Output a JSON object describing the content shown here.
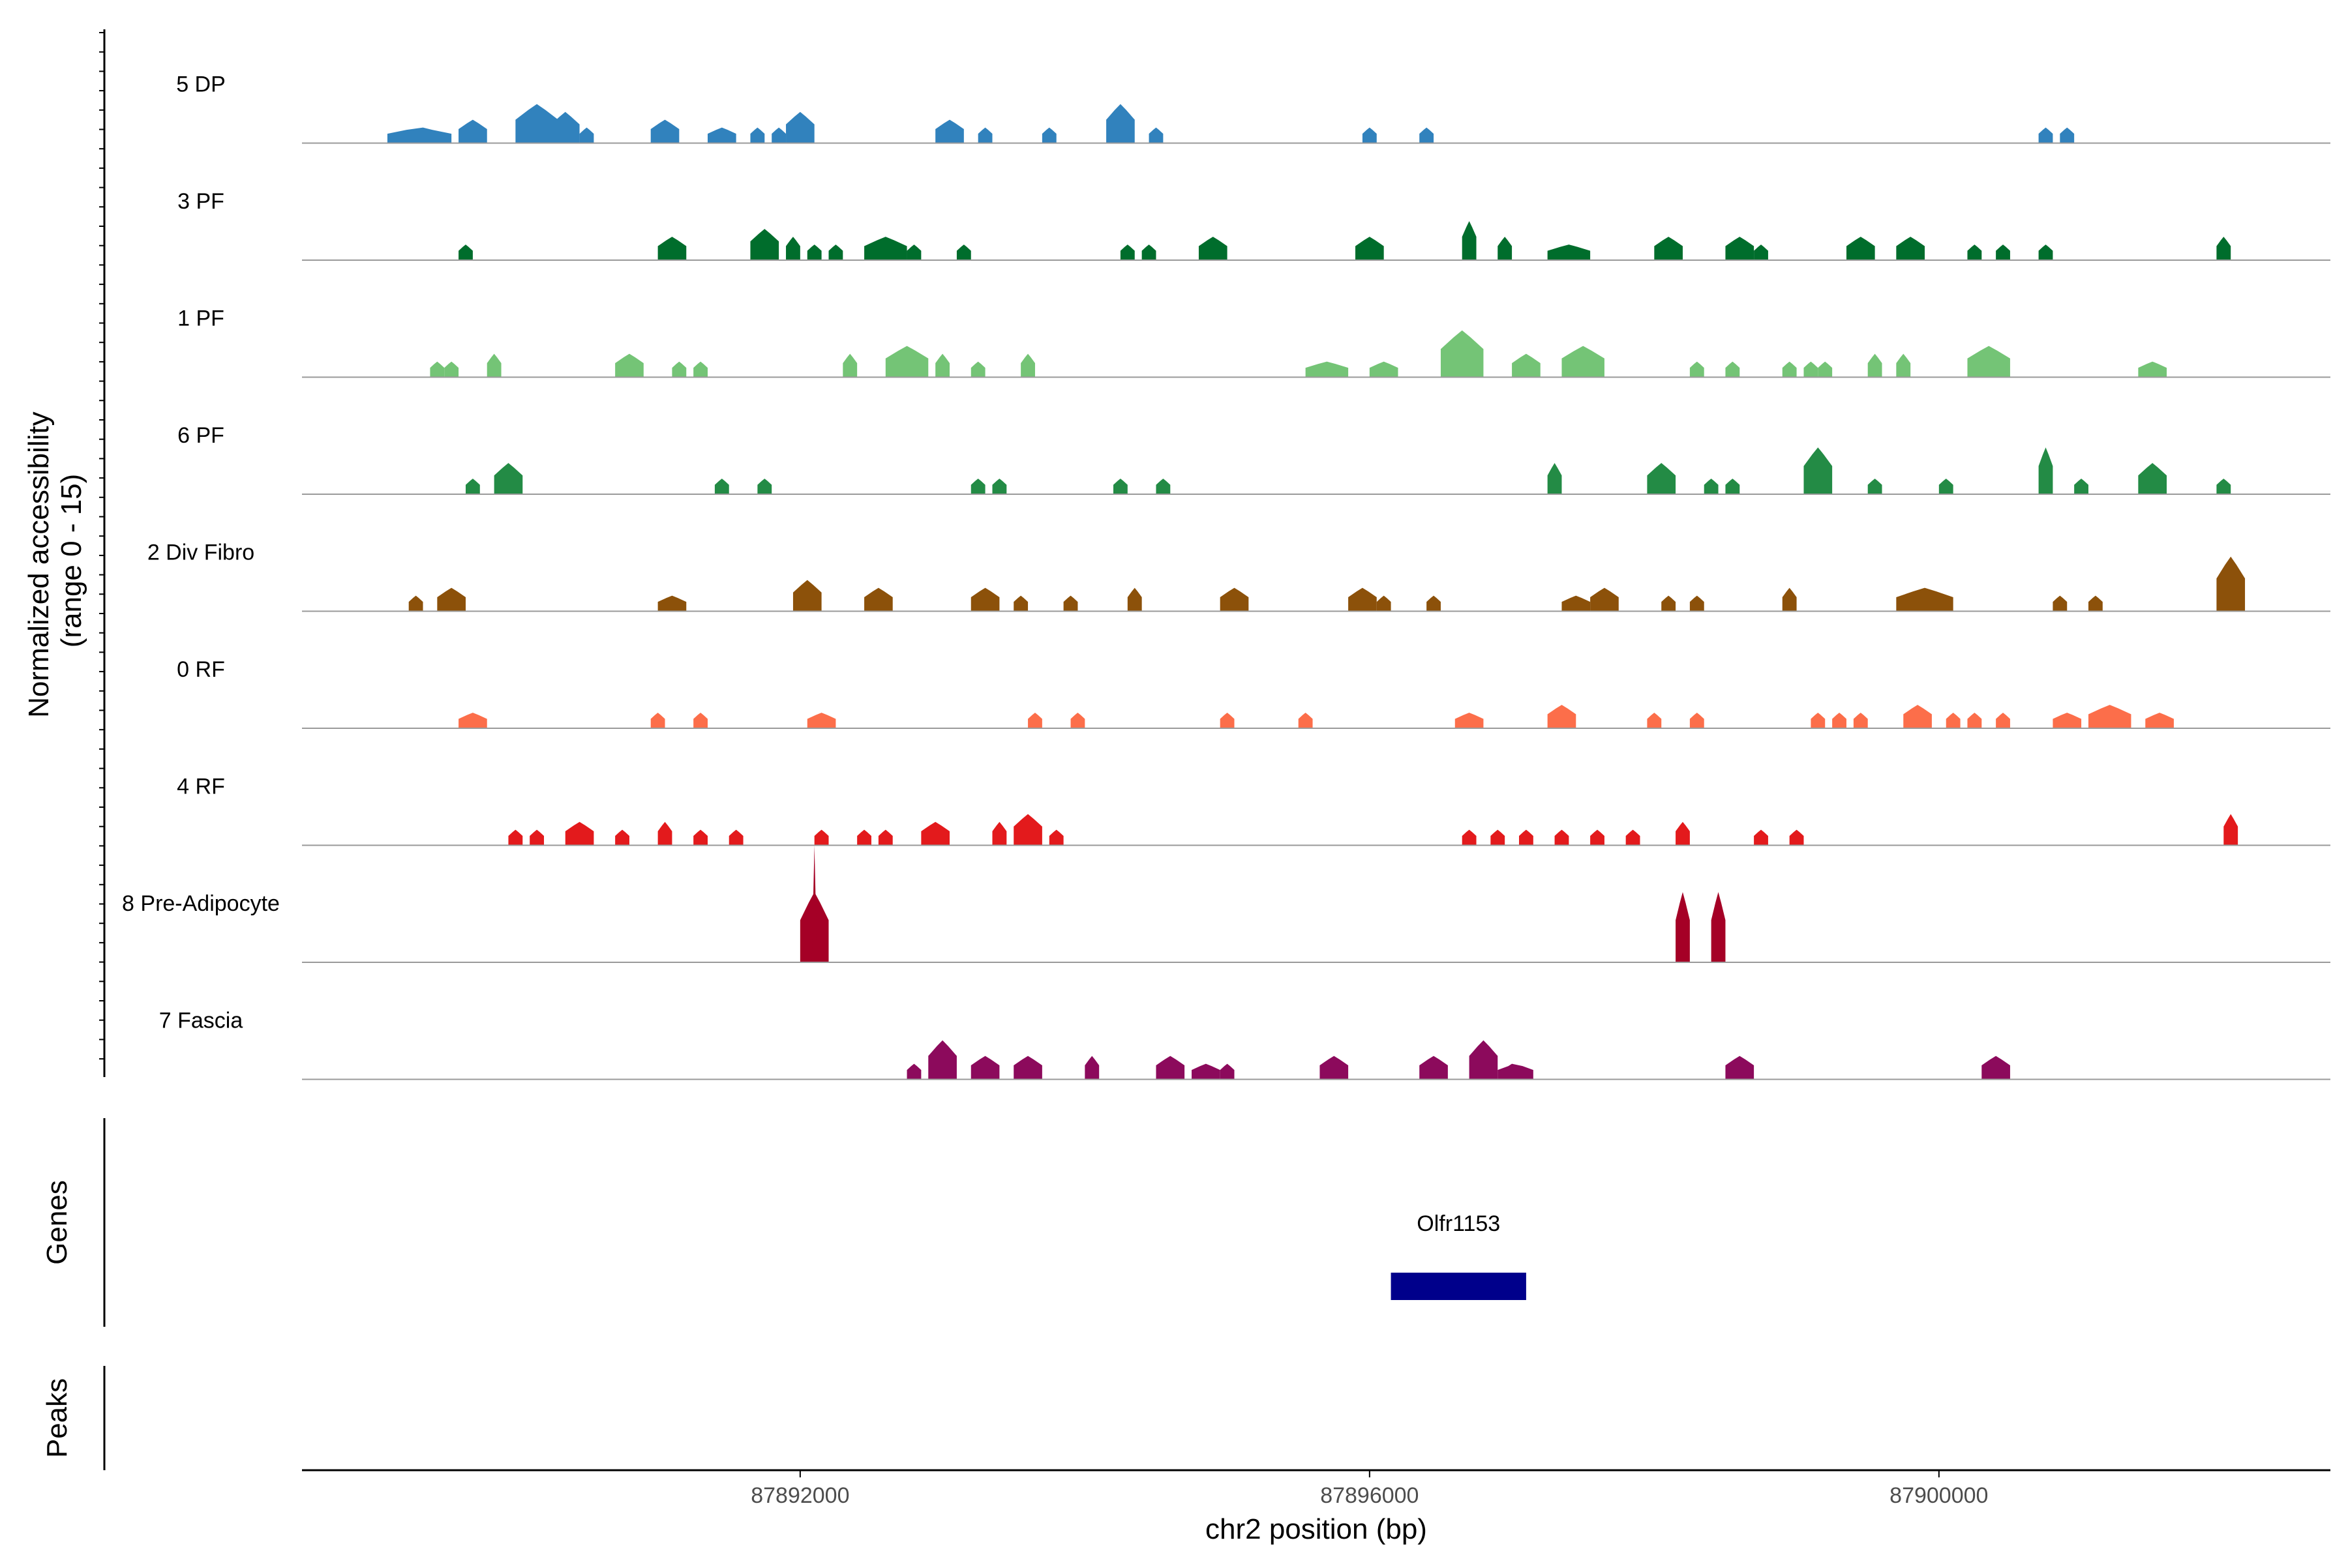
{
  "chart_data": {
    "type": "area",
    "ylabel_lines": [
      "Normalized accessibility",
      "(range 0 - 15)"
    ],
    "xlabel": "chr2 position (bp)",
    "xlim": [
      87888500,
      87902750
    ],
    "ylim": [
      0,
      15
    ],
    "x_ticks": [
      87892000,
      87896000,
      87900000
    ],
    "x_tick_labels": [
      "87892000",
      "87896000",
      "87900000"
    ],
    "grid": false,
    "tracks": [
      {
        "name": "5 DP",
        "color": "#3182BD",
        "peaks": [
          [
            87889350,
            87889100,
            87889550,
            2
          ],
          [
            87889700,
            87889600,
            87889800,
            3
          ],
          [
            87890150,
            87890000,
            87890300,
            5
          ],
          [
            87890350,
            87890250,
            87890450,
            4
          ],
          [
            87890500,
            87890450,
            87890550,
            2
          ],
          [
            87891050,
            87890950,
            87891150,
            3
          ],
          [
            87891450,
            87891350,
            87891550,
            2
          ],
          [
            87891700,
            87891650,
            87891750,
            2
          ],
          [
            87891850,
            87891800,
            87891900,
            2
          ],
          [
            87892000,
            87891900,
            87892100,
            4
          ],
          [
            87893050,
            87892950,
            87893150,
            3
          ],
          [
            87893300,
            87893250,
            87893350,
            2
          ],
          [
            87893750,
            87893700,
            87893800,
            2
          ],
          [
            87894250,
            87894150,
            87894350,
            5
          ],
          [
            87894500,
            87894450,
            87894550,
            2
          ],
          [
            87896000,
            87895950,
            87896050,
            2
          ],
          [
            87896400,
            87896350,
            87896450,
            2
          ],
          [
            87900750,
            87900700,
            87900800,
            2
          ],
          [
            87900900,
            87900850,
            87900950,
            2
          ]
        ]
      },
      {
        "name": "3 PF",
        "color": "#006D2C",
        "peaks": [
          [
            87889650,
            87889600,
            87889700,
            2
          ],
          [
            87891100,
            87891000,
            87891200,
            3
          ],
          [
            87891750,
            87891650,
            87891850,
            4
          ],
          [
            87891950,
            87891900,
            87892000,
            3
          ],
          [
            87892100,
            87892050,
            87892150,
            2
          ],
          [
            87892250,
            87892200,
            87892300,
            2
          ],
          [
            87892600,
            87892450,
            87892750,
            3
          ],
          [
            87892800,
            87892750,
            87892850,
            2
          ],
          [
            87893150,
            87893100,
            87893200,
            2
          ],
          [
            87894300,
            87894250,
            87894350,
            2
          ],
          [
            87894450,
            87894400,
            87894500,
            2
          ],
          [
            87894900,
            87894800,
            87895000,
            3
          ],
          [
            87896000,
            87895900,
            87896100,
            3
          ],
          [
            87896700,
            87896650,
            87896750,
            5
          ],
          [
            87896950,
            87896900,
            87897000,
            3
          ],
          [
            87897400,
            87897250,
            87897550,
            2
          ],
          [
            87898100,
            87898000,
            87898200,
            3
          ],
          [
            87898600,
            87898500,
            87898700,
            3
          ],
          [
            87898750,
            87898700,
            87898800,
            2
          ],
          [
            87899450,
            87899350,
            87899550,
            3
          ],
          [
            87899800,
            87899700,
            87899900,
            3
          ],
          [
            87900250,
            87900200,
            87900300,
            2
          ],
          [
            87900450,
            87900400,
            87900500,
            2
          ],
          [
            87900750,
            87900700,
            87900800,
            2
          ],
          [
            87902000,
            87901950,
            87902050,
            3
          ]
        ]
      },
      {
        "name": "1 PF",
        "color": "#74C476",
        "peaks": [
          [
            87889450,
            87889400,
            87889500,
            2
          ],
          [
            87889550,
            87889500,
            87889600,
            2
          ],
          [
            87889850,
            87889800,
            87889900,
            3
          ],
          [
            87890800,
            87890700,
            87890900,
            3
          ],
          [
            87891150,
            87891100,
            87891200,
            2
          ],
          [
            87891300,
            87891250,
            87891350,
            2
          ],
          [
            87892350,
            87892300,
            87892400,
            3
          ],
          [
            87892750,
            87892600,
            87892900,
            4
          ],
          [
            87893000,
            87892950,
            87893050,
            3
          ],
          [
            87893250,
            87893200,
            87893300,
            2
          ],
          [
            87893600,
            87893550,
            87893650,
            3
          ],
          [
            87895700,
            87895550,
            87895850,
            2
          ],
          [
            87896100,
            87896000,
            87896200,
            2
          ],
          [
            87896650,
            87896500,
            87896800,
            6
          ],
          [
            87897100,
            87897000,
            87897200,
            3
          ],
          [
            87897500,
            87897350,
            87897650,
            4
          ],
          [
            87898300,
            87898250,
            87898350,
            2
          ],
          [
            87898550,
            87898500,
            87898600,
            2
          ],
          [
            87898950,
            87898900,
            87899000,
            2
          ],
          [
            87899100,
            87899050,
            87899150,
            2
          ],
          [
            87899200,
            87899150,
            87899250,
            2
          ],
          [
            87899550,
            87899500,
            87899600,
            3
          ],
          [
            87899750,
            87899700,
            87899800,
            3
          ],
          [
            87900350,
            87900200,
            87900500,
            4
          ],
          [
            87901500,
            87901400,
            87901600,
            2
          ]
        ]
      },
      {
        "name": "6 PF",
        "color": "#238B45",
        "peaks": [
          [
            87889700,
            87889650,
            87889750,
            2
          ],
          [
            87889950,
            87889850,
            87890050,
            4
          ],
          [
            87891450,
            87891400,
            87891500,
            2
          ],
          [
            87891750,
            87891700,
            87891800,
            2
          ],
          [
            87893250,
            87893200,
            87893300,
            2
          ],
          [
            87893400,
            87893350,
            87893450,
            2
          ],
          [
            87894250,
            87894200,
            87894300,
            2
          ],
          [
            87894550,
            87894500,
            87894600,
            2
          ],
          [
            87897300,
            87897250,
            87897350,
            4
          ],
          [
            87898050,
            87897950,
            87898150,
            4
          ],
          [
            87898400,
            87898350,
            87898450,
            2
          ],
          [
            87898550,
            87898500,
            87898600,
            2
          ],
          [
            87899150,
            87899050,
            87899250,
            6
          ],
          [
            87899550,
            87899500,
            87899600,
            2
          ],
          [
            87900050,
            87900000,
            87900100,
            2
          ],
          [
            87900750,
            87900700,
            87900800,
            6
          ],
          [
            87901000,
            87900950,
            87901050,
            2
          ],
          [
            87901500,
            87901400,
            87901600,
            4
          ],
          [
            87902000,
            87901950,
            87902050,
            2
          ]
        ]
      },
      {
        "name": "2 Div Fibro",
        "color": "#8C510A",
        "peaks": [
          [
            87889300,
            87889250,
            87889350,
            2
          ],
          [
            87889550,
            87889450,
            87889650,
            3
          ],
          [
            87891100,
            87891000,
            87891200,
            2
          ],
          [
            87892050,
            87891950,
            87892150,
            4
          ],
          [
            87892550,
            87892450,
            87892650,
            3
          ],
          [
            87893300,
            87893200,
            87893400,
            3
          ],
          [
            87893550,
            87893500,
            87893600,
            2
          ],
          [
            87893900,
            87893850,
            87893950,
            2
          ],
          [
            87894350,
            87894300,
            87894400,
            3
          ],
          [
            87895050,
            87894950,
            87895150,
            3
          ],
          [
            87895950,
            87895850,
            87896050,
            3
          ],
          [
            87896100,
            87896050,
            87896150,
            2
          ],
          [
            87896450,
            87896400,
            87896500,
            2
          ],
          [
            87897450,
            87897350,
            87897550,
            2
          ],
          [
            87897650,
            87897550,
            87897750,
            3
          ],
          [
            87898100,
            87898050,
            87898150,
            2
          ],
          [
            87898300,
            87898250,
            87898350,
            2
          ],
          [
            87898950,
            87898900,
            87899000,
            3
          ],
          [
            87899900,
            87899700,
            87900100,
            3
          ],
          [
            87900850,
            87900800,
            87900900,
            2
          ],
          [
            87901100,
            87901050,
            87901150,
            2
          ],
          [
            87902050,
            87901950,
            87902150,
            7
          ]
        ]
      },
      {
        "name": "0 RF",
        "color": "#FC6E4A",
        "peaks": [
          [
            87889700,
            87889600,
            87889800,
            2
          ],
          [
            87891000,
            87890950,
            87891050,
            2
          ],
          [
            87891300,
            87891250,
            87891350,
            2
          ],
          [
            87892150,
            87892050,
            87892250,
            2
          ],
          [
            87893650,
            87893600,
            87893700,
            2
          ],
          [
            87893950,
            87893900,
            87894000,
            2
          ],
          [
            87895000,
            87894950,
            87895050,
            2
          ],
          [
            87895550,
            87895500,
            87895600,
            2
          ],
          [
            87896700,
            87896600,
            87896800,
            2
          ],
          [
            87897350,
            87897250,
            87897450,
            3
          ],
          [
            87898000,
            87897950,
            87898050,
            2
          ],
          [
            87898300,
            87898250,
            87898350,
            2
          ],
          [
            87899150,
            87899100,
            87899200,
            2
          ],
          [
            87899300,
            87899250,
            87899350,
            2
          ],
          [
            87899450,
            87899400,
            87899500,
            2
          ],
          [
            87899850,
            87899750,
            87899950,
            3
          ],
          [
            87900100,
            87900050,
            87900150,
            2
          ],
          [
            87900250,
            87900200,
            87900300,
            2
          ],
          [
            87900450,
            87900400,
            87900500,
            2
          ],
          [
            87900900,
            87900800,
            87901000,
            2
          ],
          [
            87901200,
            87901050,
            87901350,
            3
          ],
          [
            87901550,
            87901450,
            87901650,
            2
          ]
        ]
      },
      {
        "name": "4 RF",
        "color": "#E31A1C",
        "peaks": [
          [
            87890000,
            87889950,
            87890050,
            2
          ],
          [
            87890150,
            87890100,
            87890200,
            2
          ],
          [
            87890450,
            87890350,
            87890550,
            3
          ],
          [
            87890750,
            87890700,
            87890800,
            2
          ],
          [
            87891050,
            87891000,
            87891100,
            3
          ],
          [
            87891300,
            87891250,
            87891350,
            2
          ],
          [
            87891550,
            87891500,
            87891600,
            2
          ],
          [
            87892150,
            87892100,
            87892200,
            2
          ],
          [
            87892450,
            87892400,
            87892500,
            2
          ],
          [
            87892600,
            87892550,
            87892650,
            2
          ],
          [
            87892950,
            87892850,
            87893050,
            3
          ],
          [
            87893400,
            87893350,
            87893450,
            3
          ],
          [
            87893600,
            87893500,
            87893700,
            4
          ],
          [
            87893800,
            87893750,
            87893850,
            2
          ],
          [
            87896700,
            87896650,
            87896750,
            2
          ],
          [
            87896900,
            87896850,
            87896950,
            2
          ],
          [
            87897100,
            87897050,
            87897150,
            2
          ],
          [
            87897350,
            87897300,
            87897400,
            2
          ],
          [
            87897600,
            87897550,
            87897650,
            2
          ],
          [
            87897850,
            87897800,
            87897900,
            2
          ],
          [
            87898200,
            87898150,
            87898250,
            3
          ],
          [
            87898750,
            87898700,
            87898800,
            2
          ],
          [
            87899000,
            87898950,
            87899050,
            2
          ],
          [
            87902050,
            87902000,
            87902100,
            4
          ]
        ]
      },
      {
        "name": "8 Pre-Adipocyte",
        "color": "#A50026",
        "peaks": [
          [
            87892100,
            87892000,
            87892200,
            9
          ],
          [
            87898200,
            87898150,
            87898250,
            9
          ],
          [
            87898450,
            87898400,
            87898500,
            9
          ]
        ],
        "spikes": [
          [
            87892100,
            15
          ]
        ]
      },
      {
        "name": "7 Fascia",
        "color": "#8C0A5C",
        "peaks": [
          [
            87892800,
            87892750,
            87892850,
            2
          ],
          [
            87893000,
            87892900,
            87893100,
            5
          ],
          [
            87893300,
            87893200,
            87893400,
            3
          ],
          [
            87893600,
            87893500,
            87893700,
            3
          ],
          [
            87894050,
            87894000,
            87894100,
            3
          ],
          [
            87894600,
            87894500,
            87894700,
            3
          ],
          [
            87894850,
            87894750,
            87894950,
            2
          ],
          [
            87895000,
            87894950,
            87895050,
            2
          ],
          [
            87895750,
            87895650,
            87895850,
            3
          ],
          [
            87896450,
            87896350,
            87896550,
            3
          ],
          [
            87896800,
            87896700,
            87896900,
            5
          ],
          [
            87897000,
            87896900,
            87897150,
            2
          ],
          [
            87898600,
            87898500,
            87898700,
            3
          ],
          [
            87900400,
            87900300,
            87900500,
            3
          ]
        ]
      }
    ],
    "genes": {
      "title": "Genes",
      "items": [
        {
          "name": "Olfr1153",
          "start": 87896150,
          "end": 87897100,
          "color": "#00008B"
        }
      ]
    },
    "peaks_track": {
      "title": "Peaks"
    }
  }
}
